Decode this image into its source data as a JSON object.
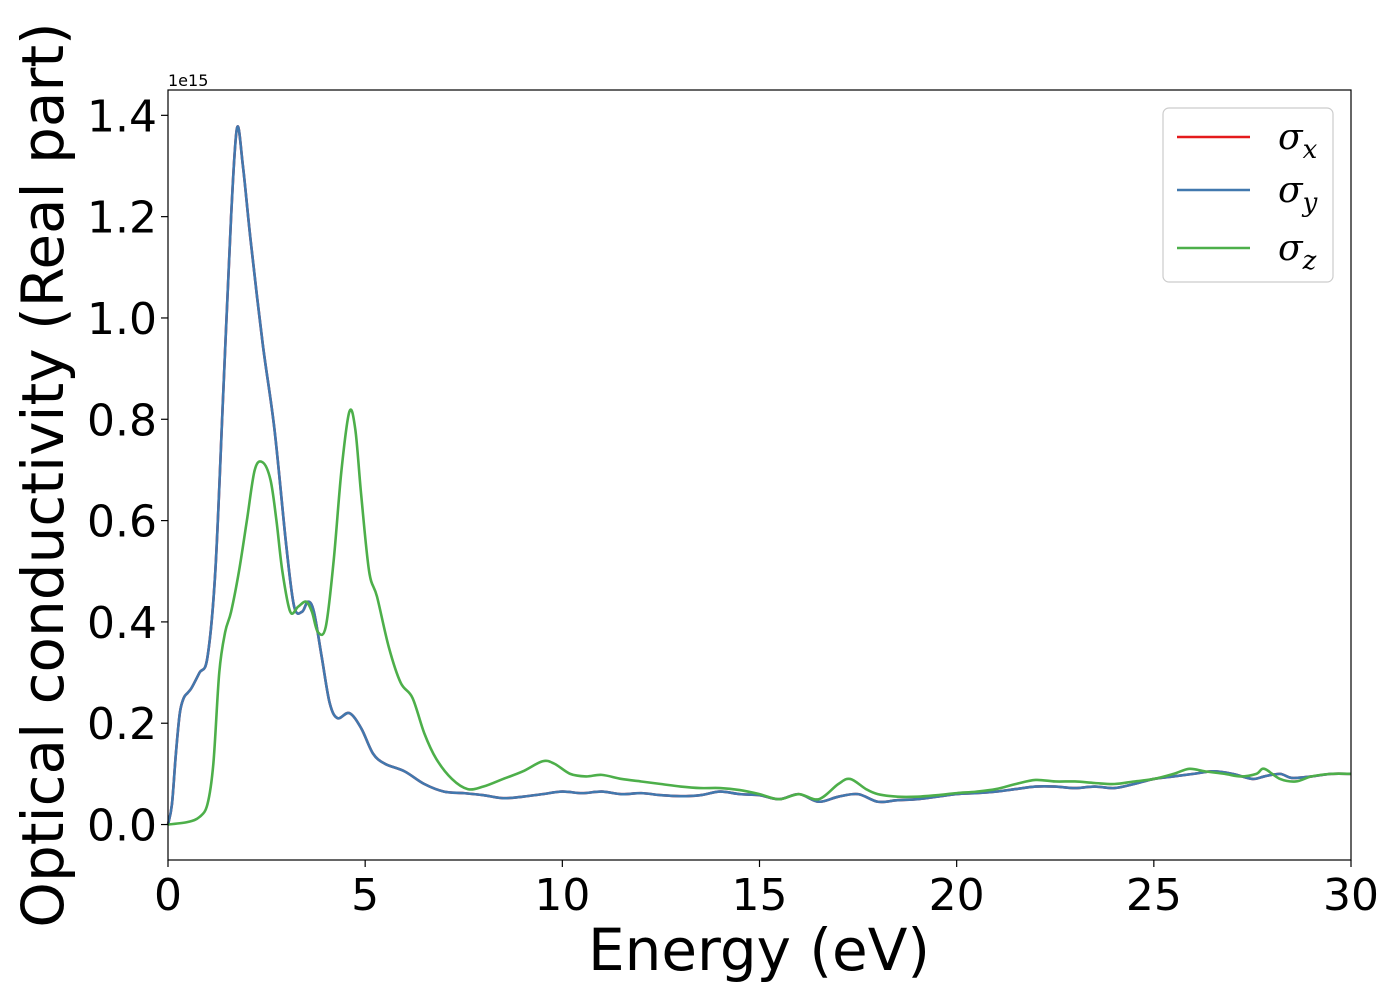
{
  "chart_data": {
    "type": "line",
    "title": "",
    "xlabel": "Energy (eV)",
    "ylabel": "Optical conductivity (Real part)",
    "y_offset_text": "1e15",
    "xlim": [
      0,
      30
    ],
    "ylim": [
      -0.07,
      1.45
    ],
    "x_ticks": [
      0,
      5,
      10,
      15,
      20,
      25,
      30
    ],
    "x_tick_labels": [
      "0",
      "5",
      "10",
      "15",
      "20",
      "25",
      "30"
    ],
    "y_ticks": [
      0.0,
      0.2,
      0.4,
      0.6,
      0.8,
      1.0,
      1.2,
      1.4
    ],
    "y_tick_labels": [
      "0.0",
      "0.2",
      "0.4",
      "0.6",
      "0.8",
      "1.0",
      "1.2",
      "1.4"
    ],
    "grid": false,
    "legend_position": "top-right",
    "series": [
      {
        "name": "σx",
        "legend_base": "σ",
        "legend_sub": "x",
        "color": "#e41a1c",
        "x": [
          0,
          0.1,
          0.2,
          0.3,
          0.4,
          0.5,
          0.6,
          0.8,
          1.0,
          1.2,
          1.4,
          1.6,
          1.75,
          1.9,
          2.1,
          2.4,
          2.7,
          3.0,
          3.2,
          3.4,
          3.55,
          3.7,
          3.9,
          4.1,
          4.3,
          4.6,
          4.9,
          5.2,
          5.5,
          6.0,
          6.5,
          7.0,
          7.5,
          8.0,
          8.5,
          9.0,
          9.5,
          10.0,
          10.5,
          11.0,
          11.5,
          12.0,
          12.5,
          13.0,
          13.5,
          14.0,
          14.5,
          15.0,
          15.5,
          16.0,
          16.5,
          17.0,
          17.5,
          18.0,
          18.5,
          19.0,
          19.5,
          20.0,
          20.5,
          21.0,
          21.5,
          22.0,
          22.5,
          23.0,
          23.5,
          24.0,
          24.5,
          25.0,
          25.5,
          26.0,
          26.5,
          27.0,
          27.5,
          27.8,
          28.2,
          28.5,
          29.0,
          29.5,
          30.0
        ],
        "y": [
          0.0,
          0.04,
          0.14,
          0.22,
          0.25,
          0.26,
          0.27,
          0.3,
          0.33,
          0.5,
          0.85,
          1.2,
          1.375,
          1.3,
          1.15,
          0.95,
          0.78,
          0.55,
          0.43,
          0.42,
          0.44,
          0.42,
          0.33,
          0.24,
          0.21,
          0.22,
          0.19,
          0.14,
          0.12,
          0.105,
          0.08,
          0.065,
          0.062,
          0.058,
          0.052,
          0.055,
          0.06,
          0.065,
          0.062,
          0.065,
          0.06,
          0.062,
          0.058,
          0.056,
          0.058,
          0.065,
          0.06,
          0.058,
          0.05,
          0.06,
          0.045,
          0.055,
          0.06,
          0.045,
          0.048,
          0.05,
          0.055,
          0.06,
          0.062,
          0.065,
          0.07,
          0.075,
          0.075,
          0.072,
          0.075,
          0.072,
          0.08,
          0.09,
          0.095,
          0.1,
          0.105,
          0.1,
          0.09,
          0.095,
          0.1,
          0.092,
          0.095,
          0.1,
          0.1
        ]
      },
      {
        "name": "σy",
        "legend_base": "σ",
        "legend_sub": "y",
        "color": "#4178ae",
        "x": [
          0,
          0.1,
          0.2,
          0.3,
          0.4,
          0.5,
          0.6,
          0.8,
          1.0,
          1.2,
          1.4,
          1.6,
          1.75,
          1.9,
          2.1,
          2.4,
          2.7,
          3.0,
          3.2,
          3.4,
          3.55,
          3.7,
          3.9,
          4.1,
          4.3,
          4.6,
          4.9,
          5.2,
          5.5,
          6.0,
          6.5,
          7.0,
          7.5,
          8.0,
          8.5,
          9.0,
          9.5,
          10.0,
          10.5,
          11.0,
          11.5,
          12.0,
          12.5,
          13.0,
          13.5,
          14.0,
          14.5,
          15.0,
          15.5,
          16.0,
          16.5,
          17.0,
          17.5,
          18.0,
          18.5,
          19.0,
          19.5,
          20.0,
          20.5,
          21.0,
          21.5,
          22.0,
          22.5,
          23.0,
          23.5,
          24.0,
          24.5,
          25.0,
          25.5,
          26.0,
          26.5,
          27.0,
          27.5,
          27.8,
          28.2,
          28.5,
          29.0,
          29.5,
          30.0
        ],
        "y": [
          0.0,
          0.04,
          0.14,
          0.22,
          0.25,
          0.26,
          0.27,
          0.3,
          0.33,
          0.5,
          0.85,
          1.2,
          1.375,
          1.3,
          1.15,
          0.95,
          0.78,
          0.55,
          0.43,
          0.42,
          0.44,
          0.42,
          0.33,
          0.24,
          0.21,
          0.22,
          0.19,
          0.14,
          0.12,
          0.105,
          0.08,
          0.065,
          0.062,
          0.058,
          0.052,
          0.055,
          0.06,
          0.065,
          0.062,
          0.065,
          0.06,
          0.062,
          0.058,
          0.056,
          0.058,
          0.065,
          0.06,
          0.058,
          0.05,
          0.06,
          0.045,
          0.055,
          0.06,
          0.045,
          0.048,
          0.05,
          0.055,
          0.06,
          0.062,
          0.065,
          0.07,
          0.075,
          0.075,
          0.072,
          0.075,
          0.072,
          0.08,
          0.09,
          0.095,
          0.1,
          0.105,
          0.1,
          0.09,
          0.095,
          0.1,
          0.092,
          0.095,
          0.1,
          0.1
        ]
      },
      {
        "name": "σz",
        "legend_base": "σ",
        "legend_sub": "z",
        "color": "#4daf4a",
        "x": [
          0,
          0.5,
          0.8,
          1.0,
          1.15,
          1.3,
          1.45,
          1.6,
          1.8,
          2.0,
          2.2,
          2.4,
          2.6,
          2.75,
          2.9,
          3.1,
          3.3,
          3.5,
          3.65,
          3.8,
          4.0,
          4.2,
          4.4,
          4.6,
          4.75,
          4.9,
          5.1,
          5.3,
          5.6,
          5.9,
          6.2,
          6.5,
          6.8,
          7.2,
          7.6,
          8.0,
          8.5,
          9.0,
          9.5,
          9.8,
          10.2,
          10.6,
          11.0,
          11.5,
          12.0,
          12.5,
          13.0,
          13.5,
          14.0,
          14.5,
          15.0,
          15.5,
          16.0,
          16.5,
          17.0,
          17.3,
          17.7,
          18.0,
          18.5,
          19.0,
          19.5,
          20.0,
          20.5,
          21.0,
          21.5,
          22.0,
          22.5,
          23.0,
          23.5,
          24.0,
          24.5,
          25.0,
          25.5,
          25.9,
          26.3,
          26.8,
          27.2,
          27.6,
          27.8,
          28.2,
          28.6,
          29.0,
          29.5,
          30.0
        ],
        "y": [
          0.0,
          0.005,
          0.015,
          0.04,
          0.12,
          0.3,
          0.38,
          0.42,
          0.5,
          0.6,
          0.7,
          0.715,
          0.68,
          0.6,
          0.5,
          0.42,
          0.43,
          0.44,
          0.42,
          0.38,
          0.39,
          0.52,
          0.7,
          0.815,
          0.78,
          0.65,
          0.5,
          0.45,
          0.35,
          0.28,
          0.25,
          0.18,
          0.13,
          0.09,
          0.07,
          0.075,
          0.09,
          0.105,
          0.125,
          0.12,
          0.1,
          0.095,
          0.098,
          0.09,
          0.085,
          0.08,
          0.075,
          0.072,
          0.072,
          0.068,
          0.06,
          0.05,
          0.06,
          0.05,
          0.08,
          0.09,
          0.07,
          0.06,
          0.055,
          0.055,
          0.058,
          0.062,
          0.065,
          0.07,
          0.08,
          0.088,
          0.085,
          0.085,
          0.082,
          0.08,
          0.085,
          0.09,
          0.1,
          0.11,
          0.105,
          0.1,
          0.095,
          0.1,
          0.11,
          0.09,
          0.085,
          0.095,
          0.1,
          0.1
        ]
      }
    ]
  }
}
